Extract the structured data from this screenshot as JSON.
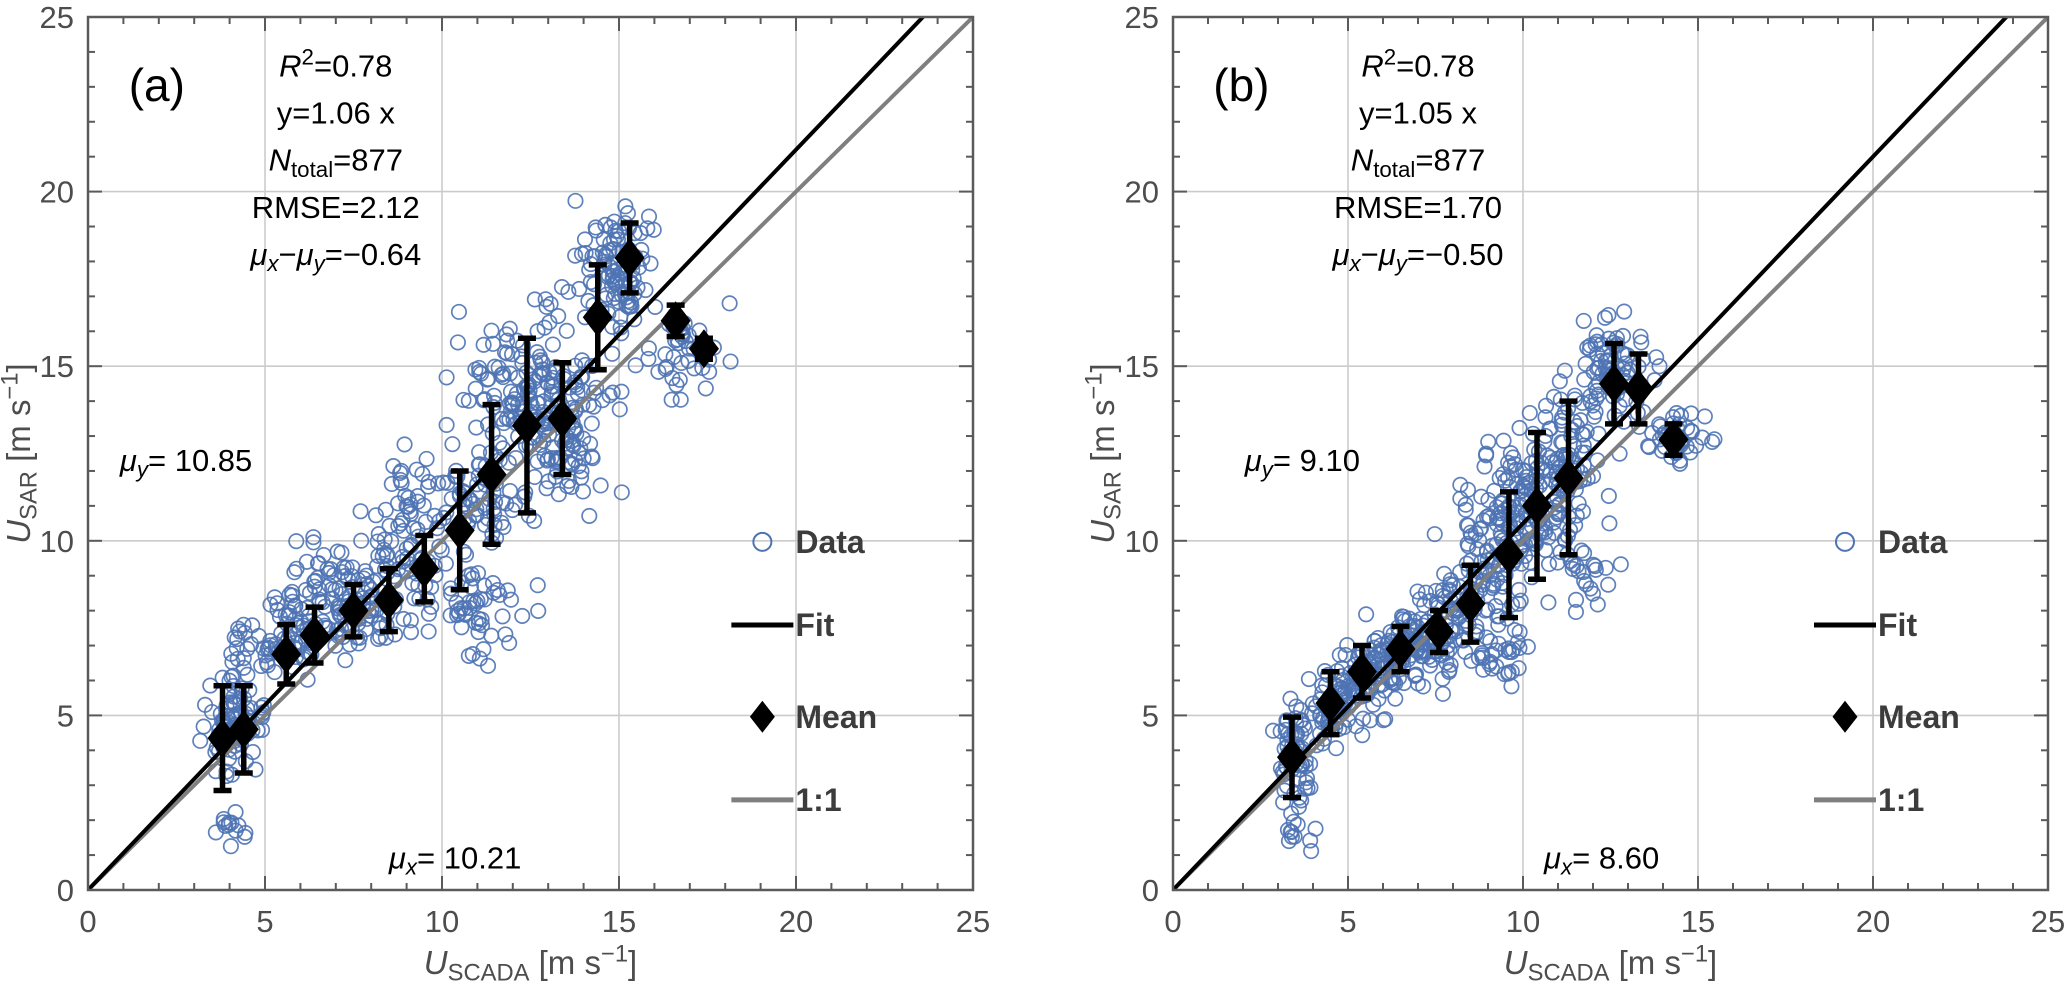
{
  "page": {
    "background": "#ffffff"
  },
  "styles": {
    "scatter_color": "#4e73b4",
    "fit_color": "#000000",
    "one_to_one_color": "#7f7f7f",
    "mean_color": "#000000",
    "grid_color": "#cbcbcb",
    "frame_color": "#5a5a5a",
    "tick_label_color": "#4d4d4d",
    "axis_label_color": "#4d4d4d",
    "legend_text_color": "#3c3c3c",
    "annotation_color": "#000000"
  },
  "chart_data": [
    {
      "panel_label": "(a)",
      "type": "scatter",
      "xlabel": "U_SCADA [m s−1]",
      "ylabel": "U_SAR [m s−1]",
      "xlabel_segs": [
        {
          "t": "U",
          "i": 1
        },
        {
          "t": "SCADA",
          "sub": 1
        },
        {
          "t": " [m s"
        },
        {
          "t": "−1",
          "sup": 1
        },
        {
          "t": "]"
        }
      ],
      "ylabel_segs": [
        {
          "t": "U",
          "i": 1
        },
        {
          "t": "SAR",
          "sub": 1
        },
        {
          "t": " [m s"
        },
        {
          "t": "−1",
          "sup": 1
        },
        {
          "t": "]"
        }
      ],
      "xlim": [
        0,
        25
      ],
      "ylim": [
        0,
        25
      ],
      "xticks": [
        0,
        5,
        10,
        15,
        20,
        25
      ],
      "yticks": [
        0,
        5,
        10,
        15,
        20,
        25
      ],
      "minor_step": 1,
      "grid": true,
      "grid_step": 5,
      "stats": {
        "r2": "0.78",
        "fit_equation": "y=1.06 x",
        "n_total": "877",
        "rmse": "2.12",
        "mu_x_minus_mu_y": "−0.64",
        "mu_y": "10.85",
        "mu_x": "10.21"
      },
      "stats_lines": [
        [
          {
            "t": "R",
            "i": 1
          },
          {
            "t": "2",
            "sup": 1
          },
          {
            "t": "=0.78"
          }
        ],
        [
          {
            "t": "y=1.06 x"
          }
        ],
        [
          {
            "t": "N",
            "i": 1
          },
          {
            "t": "total",
            "sub": 1
          },
          {
            "t": "=877"
          }
        ],
        [
          {
            "t": "RMSE=2.12"
          }
        ],
        [
          {
            "t": "μ",
            "i": 1
          },
          {
            "t": "x",
            "sub": 1,
            "i": 1
          },
          {
            "t": "−"
          },
          {
            "t": "μ",
            "i": 1
          },
          {
            "t": "y",
            "sub": 1,
            "i": 1
          },
          {
            "t": "=−0.64"
          }
        ]
      ],
      "mu_y_line": [
        {
          "t": "μ",
          "i": 1
        },
        {
          "t": "y",
          "sub": 1,
          "i": 1
        },
        {
          "t": "= 10.85"
        }
      ],
      "mu_x_line": [
        {
          "t": "μ",
          "i": 1
        },
        {
          "t": "x",
          "sub": 1,
          "i": 1
        },
        {
          "t": "= 10.21"
        }
      ],
      "fit_slope": 1.06,
      "one_to_one": true,
      "n_total": 877,
      "mean_points": [
        [
          3.8,
          4.35,
          1.5
        ],
        [
          4.4,
          4.6,
          1.25
        ],
        [
          5.6,
          6.75,
          0.85
        ],
        [
          6.4,
          7.3,
          0.8
        ],
        [
          7.5,
          8.0,
          0.75
        ],
        [
          8.5,
          8.3,
          0.9
        ],
        [
          9.5,
          9.2,
          0.95
        ],
        [
          10.5,
          10.3,
          1.7
        ],
        [
          11.4,
          11.9,
          2.0
        ],
        [
          12.4,
          13.3,
          2.5
        ],
        [
          13.4,
          13.5,
          1.6
        ],
        [
          14.4,
          16.4,
          1.5
        ],
        [
          15.3,
          18.1,
          1.0
        ],
        [
          16.6,
          16.3,
          0.45
        ],
        [
          17.4,
          15.5,
          0.3
        ]
      ],
      "scatter_clusters": [
        {
          "cx": 4.1,
          "cy": 4.6,
          "sx": 0.4,
          "sy": 0.8,
          "n": 85
        },
        {
          "cx": 4.0,
          "cy": 1.85,
          "sx": 0.28,
          "sy": 0.3,
          "n": 13
        },
        {
          "cx": 4.3,
          "cy": 7.2,
          "sx": 0.3,
          "sy": 0.4,
          "n": 12
        },
        {
          "cx": 5.7,
          "cy": 7.3,
          "sx": 0.5,
          "sy": 0.6,
          "n": 75
        },
        {
          "cx": 7.3,
          "cy": 8.1,
          "sx": 0.7,
          "sy": 0.6,
          "n": 85
        },
        {
          "cx": 6.6,
          "cy": 9.4,
          "sx": 0.6,
          "sy": 0.6,
          "n": 20
        },
        {
          "cx": 8.8,
          "cy": 9.2,
          "sx": 0.6,
          "sy": 0.8,
          "n": 60
        },
        {
          "cx": 9.0,
          "cy": 11.2,
          "sx": 0.5,
          "sy": 0.6,
          "n": 25
        },
        {
          "cx": 10.8,
          "cy": 11.2,
          "sx": 0.8,
          "sy": 0.8,
          "n": 70
        },
        {
          "cx": 11.1,
          "cy": 7.9,
          "sx": 0.7,
          "sy": 0.8,
          "n": 55
        },
        {
          "cx": 12.6,
          "cy": 13.9,
          "sx": 0.95,
          "sy": 1.3,
          "n": 200
        },
        {
          "cx": 13.9,
          "cy": 12.4,
          "sx": 0.5,
          "sy": 0.6,
          "n": 30
        },
        {
          "cx": 15.0,
          "cy": 17.7,
          "sx": 0.55,
          "sy": 1.1,
          "n": 105
        },
        {
          "cx": 16.9,
          "cy": 15.6,
          "sx": 0.55,
          "sy": 0.6,
          "n": 42
        }
      ],
      "legend": [
        {
          "label": "Data",
          "marker": "circle"
        },
        {
          "label": "Fit",
          "marker": "fit-line"
        },
        {
          "label": "Mean",
          "marker": "diamond"
        },
        {
          "label": "1:1",
          "marker": "one-to-one-line"
        }
      ]
    },
    {
      "panel_label": "(b)",
      "type": "scatter",
      "xlabel": "U_SCADA [m s−1]",
      "ylabel": "U_SAR [m s−1]",
      "xlabel_segs": [
        {
          "t": "U",
          "i": 1
        },
        {
          "t": "SCADA",
          "sub": 1
        },
        {
          "t": " [m s"
        },
        {
          "t": "−1",
          "sup": 1
        },
        {
          "t": "]"
        }
      ],
      "ylabel_segs": [
        {
          "t": "U",
          "i": 1
        },
        {
          "t": "SAR",
          "sub": 1
        },
        {
          "t": " [m s"
        },
        {
          "t": "−1",
          "sup": 1
        },
        {
          "t": "]"
        }
      ],
      "xlim": [
        0,
        25
      ],
      "ylim": [
        0,
        25
      ],
      "xticks": [
        0,
        5,
        10,
        15,
        20,
        25
      ],
      "yticks": [
        0,
        5,
        10,
        15,
        20,
        25
      ],
      "minor_step": 1,
      "grid": true,
      "grid_step": 5,
      "stats": {
        "r2": "0.78",
        "fit_equation": "y=1.05 x",
        "n_total": "877",
        "rmse": "1.70",
        "mu_x_minus_mu_y": "−0.50",
        "mu_y": "9.10",
        "mu_x": "8.60"
      },
      "stats_lines": [
        [
          {
            "t": "R",
            "i": 1
          },
          {
            "t": "2",
            "sup": 1
          },
          {
            "t": "=0.78"
          }
        ],
        [
          {
            "t": "y=1.05 x"
          }
        ],
        [
          {
            "t": "N",
            "i": 1
          },
          {
            "t": "total",
            "sub": 1
          },
          {
            "t": "=877"
          }
        ],
        [
          {
            "t": "RMSE=1.70"
          }
        ],
        [
          {
            "t": "μ",
            "i": 1
          },
          {
            "t": "x",
            "sub": 1,
            "i": 1
          },
          {
            "t": "−"
          },
          {
            "t": "μ",
            "i": 1
          },
          {
            "t": "y",
            "sub": 1,
            "i": 1
          },
          {
            "t": "=−0.50"
          }
        ]
      ],
      "mu_y_line": [
        {
          "t": "μ",
          "i": 1
        },
        {
          "t": "y",
          "sub": 1,
          "i": 1
        },
        {
          "t": "=  9.10"
        }
      ],
      "mu_x_line": [
        {
          "t": "μ",
          "i": 1
        },
        {
          "t": "x",
          "sub": 1,
          "i": 1
        },
        {
          "t": "=  8.60"
        }
      ],
      "fit_slope": 1.05,
      "one_to_one": true,
      "n_total": 877,
      "mean_points": [
        [
          3.4,
          3.8,
          1.15
        ],
        [
          4.5,
          5.35,
          0.9
        ],
        [
          5.4,
          6.25,
          0.75
        ],
        [
          6.5,
          6.9,
          0.65
        ],
        [
          7.6,
          7.4,
          0.6
        ],
        [
          8.5,
          8.2,
          1.1
        ],
        [
          9.6,
          9.6,
          1.8
        ],
        [
          10.4,
          11.0,
          2.1
        ],
        [
          11.3,
          11.8,
          2.2
        ],
        [
          12.6,
          14.5,
          1.15
        ],
        [
          13.3,
          14.35,
          1.0
        ],
        [
          14.3,
          12.9,
          0.45
        ]
      ],
      "scatter_clusters": [
        {
          "cx": 3.5,
          "cy": 3.9,
          "sx": 0.25,
          "sy": 0.65,
          "n": 65
        },
        {
          "cx": 3.5,
          "cy": 1.75,
          "sx": 0.22,
          "sy": 0.3,
          "n": 12
        },
        {
          "cx": 4.6,
          "cy": 5.3,
          "sx": 0.35,
          "sy": 0.55,
          "n": 65
        },
        {
          "cx": 5.6,
          "cy": 6.2,
          "sx": 0.45,
          "sy": 0.55,
          "n": 75
        },
        {
          "cx": 6.6,
          "cy": 6.9,
          "sx": 0.5,
          "sy": 0.55,
          "n": 85
        },
        {
          "cx": 7.6,
          "cy": 7.3,
          "sx": 0.5,
          "sy": 0.55,
          "n": 70
        },
        {
          "cx": 8.7,
          "cy": 8.6,
          "sx": 0.6,
          "sy": 1.1,
          "n": 80
        },
        {
          "cx": 9.4,
          "cy": 6.7,
          "sx": 0.5,
          "sy": 0.5,
          "n": 30
        },
        {
          "cx": 9.9,
          "cy": 10.8,
          "sx": 0.65,
          "sy": 1.1,
          "n": 135
        },
        {
          "cx": 11.2,
          "cy": 12.1,
          "sx": 0.6,
          "sy": 1.1,
          "n": 115
        },
        {
          "cx": 12.6,
          "cy": 14.8,
          "sx": 0.5,
          "sy": 0.8,
          "n": 80
        },
        {
          "cx": 14.3,
          "cy": 12.9,
          "sx": 0.45,
          "sy": 0.4,
          "n": 45
        },
        {
          "cx": 11.9,
          "cy": 9.2,
          "sx": 0.5,
          "sy": 0.5,
          "n": 20
        }
      ],
      "legend": [
        {
          "label": "Data",
          "marker": "circle"
        },
        {
          "label": "Fit",
          "marker": "fit-line"
        },
        {
          "label": "Mean",
          "marker": "diamond"
        },
        {
          "label": "1:1",
          "marker": "one-to-one-line"
        }
      ]
    }
  ]
}
